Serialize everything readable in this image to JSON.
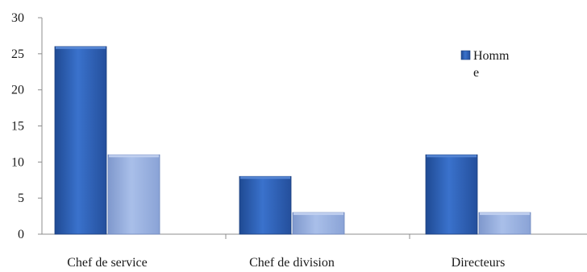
{
  "chart_data": {
    "type": "bar",
    "categories": [
      "Chef de service",
      "Chef de division",
      "Directeurs"
    ],
    "series": [
      {
        "name": "Homme",
        "values": [
          26,
          8,
          11
        ],
        "color": "#2f63b8"
      },
      {
        "values": [
          11,
          3,
          3
        ],
        "color": "#97b0e0"
      }
    ],
    "ylim": [
      0,
      30
    ],
    "yticks": [
      0,
      5,
      10,
      15,
      20,
      25,
      30
    ],
    "grid": false,
    "legend": {
      "position": "top-right",
      "entries": [
        {
          "label_lines": [
            "Homm",
            "e"
          ]
        }
      ]
    }
  }
}
